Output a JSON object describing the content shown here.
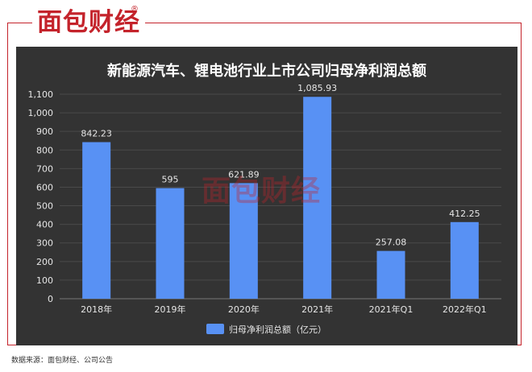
{
  "brand": {
    "logo_text": "面包财经",
    "reg_mark": "®"
  },
  "watermark": "面包财经",
  "source_note": "数据来源：面包财经、公司公告",
  "colors": {
    "brand_red": "#c4232b",
    "panel_bg": "#333333",
    "bar": "#5891f4",
    "text": "#e6e6e6",
    "grid": "#4a4a4a"
  },
  "chart_data": {
    "type": "bar",
    "title": "新能源汽车、锂电池行业上市公司归母净利润总额",
    "categories": [
      "2018年",
      "2019年",
      "2020年",
      "2021年",
      "2021年Q1",
      "2022年Q1"
    ],
    "series": [
      {
        "name": "归母净利润总额（亿元）",
        "values": [
          842.23,
          595,
          621.89,
          1085.93,
          257.08,
          412.25
        ],
        "labels": [
          "842.23",
          "595",
          "621.89",
          "1,085.93",
          "257.08",
          "412.25"
        ]
      }
    ],
    "ylim": [
      0,
      1100
    ],
    "yticks": [
      0,
      100,
      200,
      300,
      400,
      500,
      600,
      700,
      800,
      900,
      1000,
      1100
    ],
    "ytick_labels": [
      "0",
      "100",
      "200",
      "300",
      "400",
      "500",
      "600",
      "700",
      "800",
      "900",
      "1,000",
      "1,100"
    ],
    "xlabel": "",
    "ylabel": "",
    "grid": true,
    "legend": "bottom-center"
  }
}
